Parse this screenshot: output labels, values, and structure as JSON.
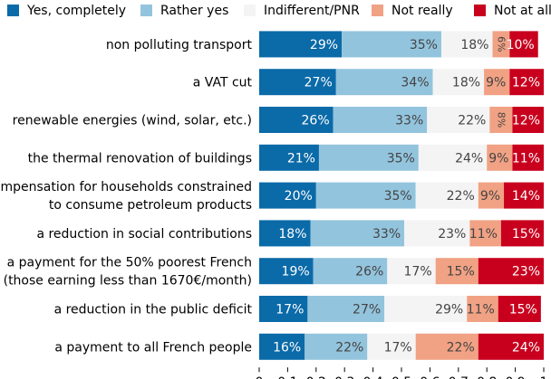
{
  "chart_data": {
    "type": "bar",
    "orientation": "horizontal",
    "stacked": true,
    "title": "",
    "xlabel": "",
    "ylabel": "",
    "xlim": [
      0,
      1
    ],
    "grid": false,
    "legend_position": "top",
    "xticks": [
      "0",
      "0.1",
      "0.2",
      "0.3",
      "0.4",
      "0.5",
      "0.6",
      "0.7",
      "0.8",
      "0.9",
      "1"
    ],
    "categories": [
      [
        "non polluting transport"
      ],
      [
        "a VAT cut"
      ],
      [
        "renewable energies (wind, solar, etc.)"
      ],
      [
        "the thermal renovation of buildings"
      ],
      [
        "compensation for households constrained",
        "to consume petroleum products"
      ],
      [
        "a reduction in social contributions"
      ],
      [
        "a payment for the 50% poorest French",
        "(those earning less than 1670€/month)"
      ],
      [
        "a reduction in the public deficit"
      ],
      [
        "a payment to all French people"
      ]
    ],
    "series": [
      {
        "name": "Yes, completely",
        "color": "#0b6aa8",
        "label_color": "#ffffff",
        "values": [
          0.29,
          0.27,
          0.26,
          0.21,
          0.2,
          0.18,
          0.19,
          0.17,
          0.16
        ],
        "labels": [
          "29%",
          "27%",
          "26%",
          "21%",
          "20%",
          "18%",
          "19%",
          "17%",
          "16%"
        ]
      },
      {
        "name": "Rather yes",
        "color": "#93c4dd",
        "label_color": "#444444",
        "values": [
          0.35,
          0.34,
          0.33,
          0.35,
          0.35,
          0.33,
          0.26,
          0.27,
          0.22
        ],
        "labels": [
          "35%",
          "34%",
          "33%",
          "35%",
          "35%",
          "33%",
          "26%",
          "27%",
          "22%"
        ]
      },
      {
        "name": "Indifferent/PNR",
        "color": "#f4f4f4",
        "label_color": "#444444",
        "values": [
          0.18,
          0.18,
          0.22,
          0.24,
          0.22,
          0.23,
          0.17,
          0.29,
          0.17
        ],
        "labels": [
          "18%",
          "18%",
          "22%",
          "24%",
          "22%",
          "23%",
          "17%",
          "29%",
          "17%"
        ]
      },
      {
        "name": "Not really",
        "color": "#f1a284",
        "label_color": "#444444",
        "values": [
          0.06,
          0.09,
          0.08,
          0.09,
          0.09,
          0.11,
          0.15,
          0.11,
          0.22
        ],
        "labels": [
          "6%",
          "9%",
          "8%",
          "9%",
          "9%",
          "11%",
          "15%",
          "11%",
          "22%"
        ]
      },
      {
        "name": "Not at all",
        "color": "#c8001e",
        "label_color": "#ffffff",
        "values": [
          0.1,
          0.12,
          0.12,
          0.11,
          0.14,
          0.15,
          0.23,
          0.15,
          0.24
        ],
        "labels": [
          "10%",
          "12%",
          "12%",
          "11%",
          "14%",
          "15%",
          "23%",
          "15%",
          "24%"
        ]
      }
    ]
  }
}
